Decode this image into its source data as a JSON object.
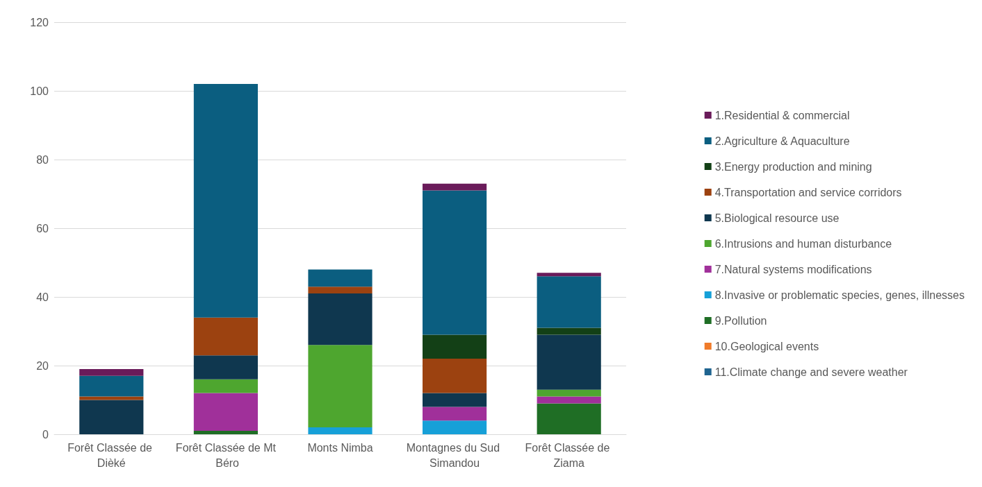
{
  "chart_data": {
    "type": "bar",
    "stacked": true,
    "categories": [
      "Forêt Classée de Dièké",
      "Forêt Classée de Mt Béro",
      "Monts Nimba",
      "Montagnes du Sud Simandou",
      "Forêt Classée de Ziama"
    ],
    "ylim": [
      0,
      120
    ],
    "yticks": [
      0,
      20,
      40,
      60,
      80,
      100,
      120
    ],
    "grid": "y",
    "legend": "right",
    "series": [
      {
        "name": "11.Climate change and severe weather",
        "color": "#1f6490",
        "values": [
          0,
          0,
          0,
          0,
          0
        ]
      },
      {
        "name": "10.Geological events",
        "color": "#f07b2a",
        "values": [
          0,
          0,
          0,
          0,
          0
        ]
      },
      {
        "name": "9.Pollution",
        "color": "#1f6e25",
        "values": [
          0,
          1,
          0,
          0,
          9
        ]
      },
      {
        "name": "8.Invasive or problematic species, genes, illnesses",
        "color": "#16a0d8",
        "values": [
          0,
          0,
          2,
          4,
          0
        ]
      },
      {
        "name": "7.Natural systems modifications",
        "color": "#a0309a",
        "values": [
          0,
          11,
          0,
          4,
          2
        ]
      },
      {
        "name": "6.Intrusions and human disturbance",
        "color": "#4ea62f",
        "values": [
          0,
          4,
          24,
          0,
          2
        ]
      },
      {
        "name": "5.Biological resource use",
        "color": "#0f374f",
        "values": [
          10,
          7,
          15,
          4,
          16
        ]
      },
      {
        "name": "4.Transportation and service corridors",
        "color": "#9c4210",
        "values": [
          1,
          11,
          2,
          10,
          0
        ]
      },
      {
        "name": "3.Energy production and mining",
        "color": "#134016",
        "values": [
          0,
          0,
          0,
          7,
          2
        ]
      },
      {
        "name": "2.Agriculture & Aquaculture",
        "color": "#0b5e80",
        "values": [
          6,
          68,
          5,
          42,
          15
        ]
      },
      {
        "name": "1.Residential & commercial",
        "color": "#6a1b5a",
        "values": [
          2,
          0,
          0,
          2,
          1
        ]
      }
    ]
  }
}
